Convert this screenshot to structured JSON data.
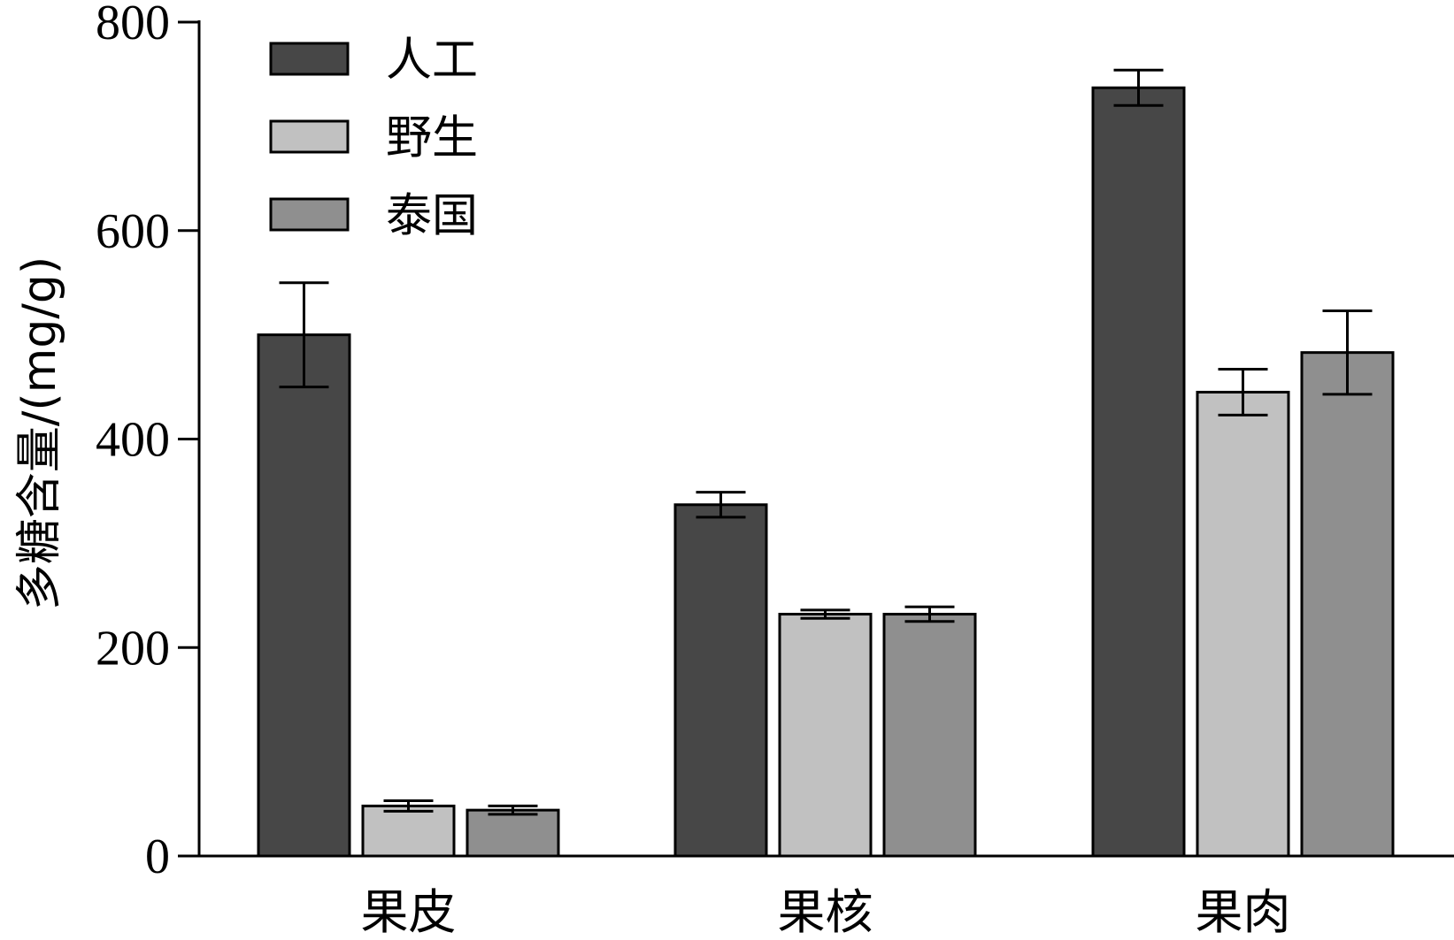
{
  "chart_data": {
    "type": "bar",
    "categories": [
      "果皮",
      "果核",
      "果肉"
    ],
    "series": [
      {
        "name": "人工",
        "color": "#474747",
        "values": [
          500,
          337,
          737
        ],
        "error": [
          50,
          12,
          17
        ]
      },
      {
        "name": "野生",
        "color": "#c1c1c1",
        "values": [
          48,
          232,
          445
        ],
        "error": [
          5,
          4,
          22
        ]
      },
      {
        "name": "泰国",
        "color": "#8f8f8f",
        "values": [
          44,
          232,
          483
        ],
        "error": [
          4,
          7,
          40
        ]
      }
    ],
    "ylabel": "多糖含量/(mg/g)",
    "xlabel": "",
    "ylim": [
      0,
      800
    ],
    "yticks": [
      0,
      200,
      400,
      600,
      800
    ],
    "legend_position": "top-left",
    "grid": false
  }
}
